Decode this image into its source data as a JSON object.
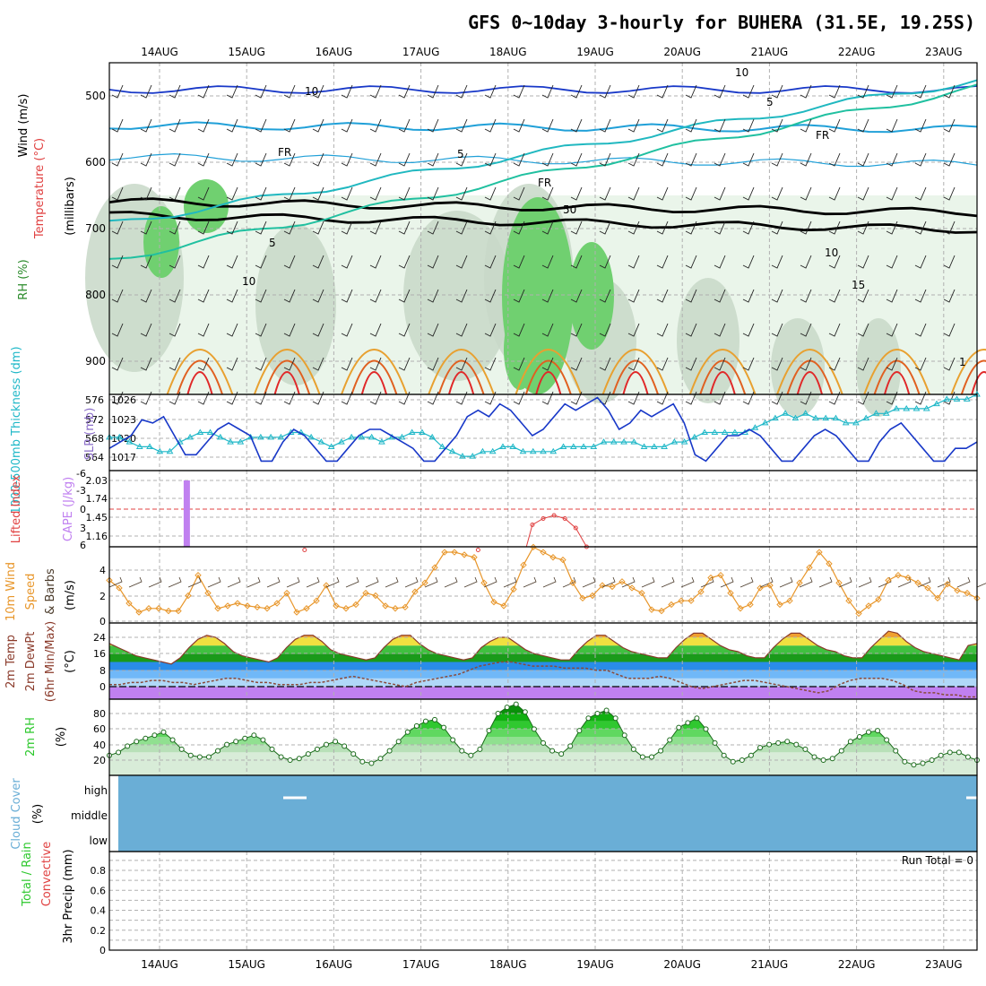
{
  "title": "GFS 0~10day 3-hourly for BUHERA (31.5E, 19.25S)",
  "dates": [
    "14AUG",
    "15AUG",
    "16AUG",
    "17AUG",
    "18AUG",
    "19AUG",
    "20AUG",
    "21AUG",
    "22AUG",
    "23AUG"
  ],
  "colors": {
    "temp_line": "#1838c8",
    "wind_speed": "#e8962a",
    "rh_green": "#2cc82c",
    "cloud": "#6aaed6",
    "cape": "#c080f0",
    "li": "#e04040",
    "thick": "#20b8c8"
  },
  "chart_data": [
    {
      "type": "line",
      "panel": "upper-air",
      "ylabel_parts": {
        "wind": "Wind (m/s)",
        "temp": "Temperature (°C)",
        "rh": "RH (%)",
        "pressure": "(millibars)"
      },
      "yticks": [
        "500",
        "600",
        "700",
        "800",
        "900"
      ],
      "ylim": [
        950,
        450
      ],
      "contour_labels": [
        "10",
        "10",
        "5",
        "5",
        "FR",
        "FR",
        "FR",
        "5",
        "10",
        "50",
        "10",
        "15",
        "1"
      ]
    },
    {
      "type": "line",
      "panel": "slp-thickness",
      "ylabel_parts": {
        "thick": "1000-500mb Thickness (dm)",
        "slp": "SLP (mb)"
      },
      "left_ticks": [
        "576",
        "572",
        "568",
        "564"
      ],
      "right_ticks": [
        "1026",
        "1023",
        "1020",
        "1017"
      ],
      "slp_ylim": [
        1014.5,
        1026.5
      ],
      "thick_ylim": [
        561,
        577
      ],
      "series": [
        {
          "name": "SLP (mb)",
          "values": [
            1018,
            1019,
            1020,
            1022.5,
            1022,
            1023,
            1020,
            1017,
            1017,
            1019,
            1021,
            1022,
            1021,
            1020,
            1016,
            1016,
            1019,
            1021,
            1020,
            1018,
            1016,
            1016,
            1018,
            1020,
            1021,
            1021,
            1020,
            1019,
            1018,
            1016,
            1016,
            1018,
            1020,
            1023,
            1024,
            1023,
            1025,
            1024,
            1022,
            1020,
            1021,
            1023,
            1025,
            1024,
            1025,
            1026,
            1024,
            1021,
            1022,
            1024,
            1023,
            1024,
            1025,
            1022,
            1017,
            1016,
            1018,
            1020,
            1020,
            1021,
            1020,
            1018,
            1016,
            1016,
            1018,
            1020,
            1021,
            1020,
            1018,
            1016,
            1016,
            1019,
            1021,
            1022,
            1020,
            1018,
            1016,
            1016,
            1018,
            1018,
            1019
          ]
        },
        {
          "name": "1000-500mb Thickness (dm)",
          "values": [
            568,
            568,
            567,
            566,
            566,
            565,
            565,
            567,
            568,
            569,
            569,
            568,
            567,
            567,
            568,
            568,
            568,
            568,
            569,
            569,
            568,
            567,
            566,
            567,
            568,
            568,
            568,
            567,
            568,
            568,
            569,
            569,
            568,
            566,
            565,
            564,
            564,
            565,
            565,
            566,
            566,
            565,
            565,
            565,
            565,
            566,
            566,
            566,
            566,
            567,
            567,
            567,
            567,
            566,
            566,
            566,
            567,
            567,
            568,
            569,
            569,
            569,
            569,
            569,
            570,
            571,
            572,
            573,
            572,
            573,
            572,
            572,
            572,
            571,
            571,
            572,
            573,
            573,
            574,
            574,
            574,
            574,
            575,
            576,
            576,
            576,
            577
          ]
        }
      ]
    },
    {
      "type": "bar",
      "panel": "cape-li",
      "ylabel_parts": {
        "li": "Lifted Index",
        "cape": "CAPE (J/kg)"
      },
      "li_ticks": [
        "-6",
        "-3",
        "0",
        "3",
        "6"
      ],
      "cape_ticks": [
        "2.03",
        "1.74",
        "1.45",
        "1.16"
      ],
      "cape_bar_date_index": 0.4,
      "cape_bar_value": 2.03,
      "li_values": [
        9,
        9,
        9,
        9,
        9,
        9,
        9,
        9,
        9,
        9,
        9,
        9,
        9,
        9,
        9,
        9,
        8,
        7,
        6.5,
        8,
        9,
        9,
        9,
        9,
        9,
        9,
        9,
        9,
        9,
        9,
        9,
        9,
        9,
        9,
        6.5,
        9,
        9,
        9,
        9,
        2.5,
        1.5,
        1.0,
        1.5,
        3.0,
        6.0,
        8.0,
        9,
        9,
        9,
        9,
        9,
        9,
        9,
        9,
        9,
        9,
        9,
        9,
        9,
        9,
        9,
        9,
        9,
        9,
        9,
        9,
        9,
        9,
        9,
        9,
        9,
        9,
        9,
        9,
        9,
        9,
        9,
        9,
        9,
        9,
        9
      ]
    },
    {
      "type": "line",
      "panel": "10m-wind",
      "ylabel_parts": {
        "wind": "10m Wind",
        "speed": "Speed",
        "barbs": "& Barbs",
        "unit": "(m/s)"
      },
      "yticks": [
        "4",
        "2",
        "0"
      ],
      "ylim": [
        0,
        5.4
      ],
      "series": [
        {
          "name": "10m Wind Speed (m/s)",
          "values": [
            3.2,
            2.6,
            1.4,
            0.7,
            1.0,
            1.0,
            0.8,
            0.8,
            2.0,
            3.6,
            2.2,
            1.0,
            1.2,
            1.4,
            1.2,
            1.1,
            1.0,
            1.4,
            2.2,
            0.7,
            1.0,
            1.6,
            2.8,
            1.2,
            1.0,
            1.3,
            2.2,
            2.0,
            1.2,
            1.0,
            1.1,
            2.3,
            3.0,
            4.2,
            5.4,
            5.4,
            5.2,
            5.0,
            3.0,
            1.5,
            1.2,
            2.5,
            4.4,
            5.8,
            5.4,
            5.0,
            4.8,
            3.0,
            1.8,
            2.0,
            2.8,
            2.7,
            3.1,
            2.6,
            2.2,
            0.9,
            0.8,
            1.3,
            1.6,
            1.6,
            2.3,
            3.4,
            3.6,
            2.2,
            1.0,
            1.3,
            2.6,
            2.8,
            1.3,
            1.6,
            3.0,
            4.2,
            5.4,
            4.5,
            3.0,
            1.6,
            0.6,
            1.2,
            1.7,
            3.2,
            3.6,
            3.4,
            3.0,
            2.6,
            1.8,
            2.9,
            2.4,
            2.2,
            1.8
          ]
        }
      ]
    },
    {
      "type": "area",
      "panel": "2m-temp",
      "ylabel_parts": {
        "temp": "2m Temp",
        "dewpt": "2m DewPt",
        "minmax": "(6hr Min/Max)",
        "unit": "(°C)"
      },
      "yticks": [
        "24",
        "16",
        "8",
        "0"
      ],
      "ylim": [
        -6,
        29
      ],
      "series": [
        {
          "name": "2m Temp (°C)",
          "values": [
            21,
            19,
            17,
            15,
            14,
            13,
            12,
            11,
            14,
            19,
            23,
            25,
            24,
            21,
            17,
            15,
            14,
            13,
            12,
            14,
            19,
            23,
            25,
            25,
            22,
            18,
            16,
            15,
            14,
            13,
            14,
            19,
            23,
            25,
            25,
            21,
            18,
            16,
            15,
            14,
            13,
            14,
            19,
            22,
            24,
            24,
            21,
            18,
            16,
            15,
            14,
            13,
            13,
            18,
            22,
            25,
            25,
            22,
            19,
            17,
            16,
            15,
            14,
            14,
            19,
            23,
            26,
            26,
            23,
            20,
            18,
            17,
            15,
            14,
            14,
            19,
            23,
            26,
            26,
            23,
            20,
            18,
            17,
            15,
            14,
            14,
            19,
            23,
            27,
            26,
            22,
            19,
            17,
            16,
            15,
            14,
            13,
            20,
            21
          ]
        },
        {
          "name": "2m DewPt (°C)",
          "values": [
            1,
            1,
            2,
            2,
            3,
            3,
            2,
            2,
            1,
            2,
            3,
            4,
            4,
            3,
            2,
            2,
            1,
            1,
            1,
            2,
            2,
            3,
            4,
            5,
            4,
            3,
            2,
            1,
            0,
            2,
            3,
            4,
            5,
            6,
            8,
            10,
            11,
            12,
            12,
            11,
            10,
            10,
            10,
            9,
            9,
            9,
            8,
            8,
            6,
            4,
            4,
            4,
            5,
            4,
            2,
            0,
            -1,
            0,
            1,
            2,
            3,
            3,
            2,
            1,
            0,
            -1,
            -2,
            -3,
            -2,
            1,
            3,
            4,
            4,
            4,
            3,
            1,
            -2,
            -3,
            -3,
            -4,
            -4,
            -5,
            -5
          ]
        }
      ]
    },
    {
      "type": "area",
      "panel": "2m-rh",
      "ylabel_parts": {
        "rh": "2m RH",
        "unit": "(%)"
      },
      "yticks": [
        "80",
        "60",
        "40",
        "20"
      ],
      "ylim": [
        5,
        100
      ],
      "series": [
        {
          "name": "2m RH (%)",
          "values": [
            26,
            30,
            38,
            44,
            48,
            52,
            56,
            46,
            34,
            26,
            24,
            24,
            32,
            40,
            44,
            48,
            52,
            46,
            34,
            24,
            20,
            22,
            28,
            34,
            40,
            44,
            38,
            28,
            18,
            16,
            22,
            32,
            44,
            56,
            64,
            70,
            72,
            62,
            46,
            32,
            26,
            34,
            58,
            80,
            88,
            92,
            82,
            60,
            42,
            32,
            28,
            38,
            58,
            74,
            80,
            84,
            74,
            52,
            34,
            24,
            24,
            32,
            46,
            62,
            68,
            74,
            60,
            42,
            26,
            18,
            20,
            26,
            36,
            40,
            42,
            44,
            40,
            34,
            24,
            20,
            22,
            32,
            44,
            50,
            56,
            58,
            46,
            32,
            18,
            14,
            16,
            20,
            26,
            30,
            30,
            24,
            20
          ]
        }
      ]
    },
    {
      "type": "heatmap",
      "panel": "cloud-cover",
      "ylabel_parts": {
        "cloud": "Cloud Cover",
        "unit": "(%)"
      },
      "levels": [
        "high",
        "middle",
        "low"
      ]
    },
    {
      "type": "bar",
      "panel": "precip",
      "ylabel_parts": {
        "total": "Total / Rain",
        "conv": "Convective",
        "unit": "3hr Precip (mm)"
      },
      "yticks": [
        "0.8",
        "0.6",
        "0.4",
        "0.2",
        "0"
      ],
      "ylim": [
        0,
        0.9
      ],
      "run_total": "Run Total = 0",
      "values": []
    }
  ]
}
